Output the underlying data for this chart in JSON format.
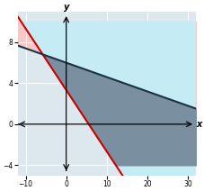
{
  "xlim": [
    -10,
    30
  ],
  "ylim": [
    -4,
    10
  ],
  "xticks": [
    -10,
    0,
    10,
    20,
    30
  ],
  "yticks": [
    -4,
    0,
    4,
    8
  ],
  "xlabel": "x",
  "ylabel": "y",
  "line1_color": "#cc0000",
  "line1_slope": -0.6,
  "line1_intercept": 3.3333,
  "line2_color": "#1a3344",
  "line2_slope": -0.14,
  "line2_intercept": 6.0,
  "shade_pink": "#f7c8c8",
  "shade_cyan": "#c5ecf5",
  "shade_gray": "#7a8f9f",
  "grid_color": "#ffffff",
  "grid_bg": "#dde8ee",
  "figsize": [
    2.27,
    2.12
  ],
  "dpi": 100
}
